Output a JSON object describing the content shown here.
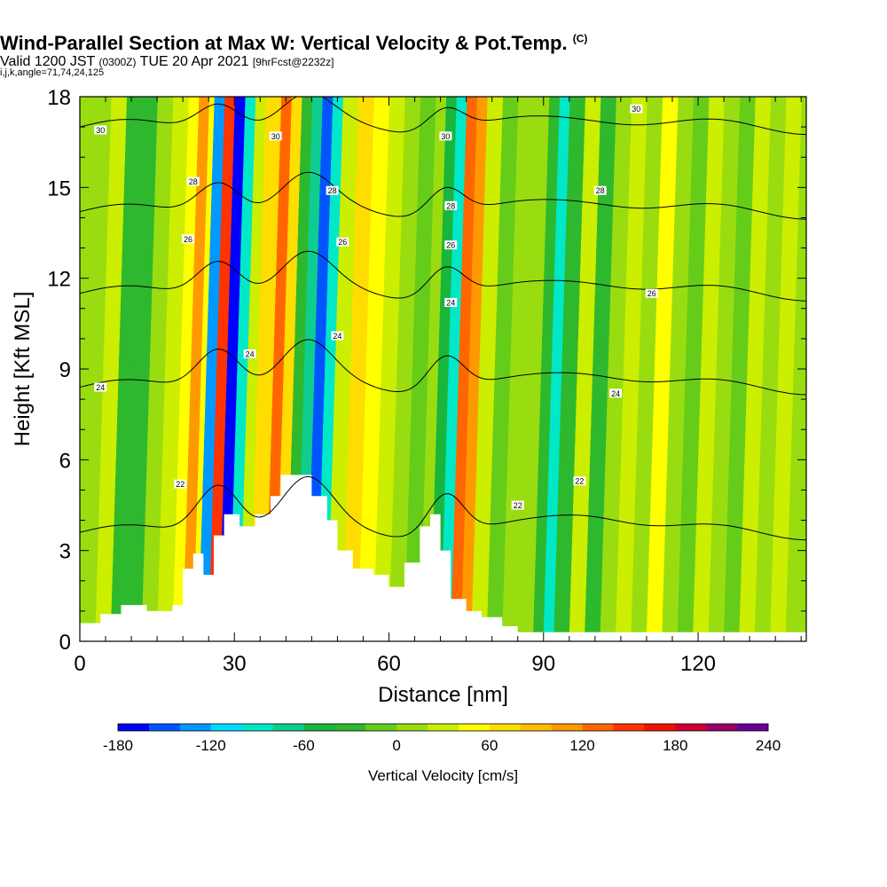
{
  "header": {
    "title": "Wind-Parallel Section at Max W: Vertical Velocity & Pot.Temp.",
    "title_tag": "(C)",
    "subtitle_a": "Valid 1200 JST",
    "subtitle_b": "(0300Z)",
    "subtitle_c": "TUE 20 Apr 2021",
    "subtitle_d": "[9hrFcst@2232z]",
    "subtitle_line3": "i,j,k,angle=71,74,24,125"
  },
  "chart_data": {
    "type": "heatmap",
    "xlabel": "Distance [nm]",
    "ylabel": "Height [Kft MSL]",
    "xlim": [
      0,
      141
    ],
    "ylim": [
      0,
      18
    ],
    "x_ticks": [
      0,
      30,
      60,
      90,
      120
    ],
    "y_ticks": [
      0,
      3,
      6,
      9,
      12,
      15,
      18
    ],
    "colorbar": {
      "label": "Vertical Velocity [cm/s]",
      "min": -180,
      "max": 240,
      "step": 20,
      "tick_values": [
        -180,
        -120,
        -60,
        0,
        60,
        120,
        180,
        240
      ],
      "colors": [
        "#0000ff",
        "#0055ff",
        "#0099ff",
        "#00dbff",
        "#00e8c8",
        "#0fcd8e",
        "#1ab53b",
        "#2eb82e",
        "#66cc1a",
        "#99dd11",
        "#ccee00",
        "#ffff00",
        "#ffdd00",
        "#ffbb00",
        "#ff9900",
        "#ff6600",
        "#ff3300",
        "#ee1100",
        "#cc0033",
        "#990066",
        "#660099"
      ]
    },
    "vertical_velocity_columns": [
      {
        "x": 0,
        "w": 10
      },
      {
        "x": 3,
        "w": 25
      },
      {
        "x": 6,
        "w": -40
      },
      {
        "x": 9,
        "w": -30
      },
      {
        "x": 12,
        "w": 0
      },
      {
        "x": 15,
        "w": 35
      },
      {
        "x": 18,
        "w": 55
      },
      {
        "x": 20,
        "w": 110
      },
      {
        "x": 22,
        "w": 40
      },
      {
        "x": 23,
        "w": -130
      },
      {
        "x": 25,
        "w": 140
      },
      {
        "x": 27,
        "w": -170
      },
      {
        "x": 29,
        "w": -90
      },
      {
        "x": 31,
        "w": 20
      },
      {
        "x": 33,
        "w": 60
      },
      {
        "x": 36,
        "w": 130
      },
      {
        "x": 38,
        "w": 70
      },
      {
        "x": 40,
        "w": -30
      },
      {
        "x": 42,
        "w": -80
      },
      {
        "x": 44,
        "w": -150
      },
      {
        "x": 46,
        "w": -100
      },
      {
        "x": 48,
        "w": 30
      },
      {
        "x": 51,
        "w": 70
      },
      {
        "x": 54,
        "w": 45
      },
      {
        "x": 57,
        "w": 20
      },
      {
        "x": 60,
        "w": 10
      },
      {
        "x": 63,
        "w": -20
      },
      {
        "x": 66,
        "w": 0
      },
      {
        "x": 68,
        "w": -60
      },
      {
        "x": 70,
        "w": -100
      },
      {
        "x": 72,
        "w": 120
      },
      {
        "x": 74,
        "w": 100
      },
      {
        "x": 76,
        "w": 30
      },
      {
        "x": 79,
        "w": -10
      },
      {
        "x": 82,
        "w": 10
      },
      {
        "x": 85,
        "w": 0
      },
      {
        "x": 88,
        "w": -40
      },
      {
        "x": 90,
        "w": -100
      },
      {
        "x": 92,
        "w": -40
      },
      {
        "x": 95,
        "w": 20
      },
      {
        "x": 98,
        "w": -30
      },
      {
        "x": 101,
        "w": 10
      },
      {
        "x": 104,
        "w": 30
      },
      {
        "x": 107,
        "w": 15
      },
      {
        "x": 110,
        "w": 40
      },
      {
        "x": 113,
        "w": 10
      },
      {
        "x": 116,
        "w": -20
      },
      {
        "x": 119,
        "w": 20
      },
      {
        "x": 122,
        "w": 10
      },
      {
        "x": 125,
        "w": -10
      },
      {
        "x": 128,
        "w": 30
      },
      {
        "x": 131,
        "w": 10
      },
      {
        "x": 134,
        "w": 20
      },
      {
        "x": 137,
        "w": 5
      },
      {
        "x": 141,
        "w": 15
      }
    ],
    "terrain": [
      {
        "x": 0,
        "h": 0.6
      },
      {
        "x": 4,
        "h": 0.9
      },
      {
        "x": 8,
        "h": 1.2
      },
      {
        "x": 13,
        "h": 1.0
      },
      {
        "x": 18,
        "h": 1.2
      },
      {
        "x": 20,
        "h": 2.4
      },
      {
        "x": 22,
        "h": 2.9
      },
      {
        "x": 24,
        "h": 2.2
      },
      {
        "x": 26,
        "h": 3.5
      },
      {
        "x": 28,
        "h": 4.2
      },
      {
        "x": 31,
        "h": 3.8
      },
      {
        "x": 34,
        "h": 4.2
      },
      {
        "x": 37,
        "h": 4.8
      },
      {
        "x": 39,
        "h": 5.5
      },
      {
        "x": 42,
        "h": 5.5
      },
      {
        "x": 45,
        "h": 4.8
      },
      {
        "x": 48,
        "h": 4.0
      },
      {
        "x": 50,
        "h": 3.0
      },
      {
        "x": 53,
        "h": 2.4
      },
      {
        "x": 57,
        "h": 2.2
      },
      {
        "x": 60,
        "h": 1.8
      },
      {
        "x": 63,
        "h": 2.6
      },
      {
        "x": 66,
        "h": 3.8
      },
      {
        "x": 68,
        "h": 4.2
      },
      {
        "x": 70,
        "h": 3.0
      },
      {
        "x": 72,
        "h": 1.4
      },
      {
        "x": 75,
        "h": 1.0
      },
      {
        "x": 78,
        "h": 0.8
      },
      {
        "x": 82,
        "h": 0.5
      },
      {
        "x": 85,
        "h": 0.3
      },
      {
        "x": 141,
        "h": 0.3
      }
    ],
    "theta_contours": [
      {
        "level": 22,
        "base": 3.6,
        "amp": 1.8,
        "labels": [
          {
            "x": 19.5,
            "y": 5.2,
            "text": "22"
          },
          {
            "x": 85,
            "y": 4.5,
            "text": "22"
          },
          {
            "x": 97,
            "y": 5.3,
            "text": "22"
          }
        ]
      },
      {
        "level": 24,
        "base": 8.4,
        "amp": 1.5,
        "labels": [
          {
            "x": 4,
            "y": 8.4,
            "text": "24"
          },
          {
            "x": 33,
            "y": 9.5,
            "text": "24"
          },
          {
            "x": 50,
            "y": 10.1,
            "text": "24"
          },
          {
            "x": 72,
            "y": 11.2,
            "text": "24"
          },
          {
            "x": 104,
            "y": 8.2,
            "text": "24"
          }
        ]
      },
      {
        "level": 26,
        "base": 11.5,
        "amp": 1.3,
        "labels": [
          {
            "x": 21,
            "y": 13.3,
            "text": "26"
          },
          {
            "x": 51,
            "y": 13.2,
            "text": "26"
          },
          {
            "x": 72,
            "y": 13.1,
            "text": "26"
          },
          {
            "x": 111,
            "y": 11.5,
            "text": "26"
          }
        ]
      },
      {
        "level": 28,
        "base": 14.2,
        "amp": 1.2,
        "labels": [
          {
            "x": 22,
            "y": 15.2,
            "text": "28"
          },
          {
            "x": 49,
            "y": 14.9,
            "text": "28"
          },
          {
            "x": 72,
            "y": 14.4,
            "text": "28"
          },
          {
            "x": 101,
            "y": 14.9,
            "text": "28"
          }
        ]
      },
      {
        "level": 30,
        "base": 17.0,
        "amp": 1.0,
        "labels": [
          {
            "x": 4,
            "y": 16.9,
            "text": "30"
          },
          {
            "x": 38,
            "y": 16.7,
            "text": "30"
          },
          {
            "x": 71,
            "y": 16.7,
            "text": "30"
          },
          {
            "x": 108,
            "y": 17.6,
            "text": "30"
          }
        ]
      }
    ]
  }
}
